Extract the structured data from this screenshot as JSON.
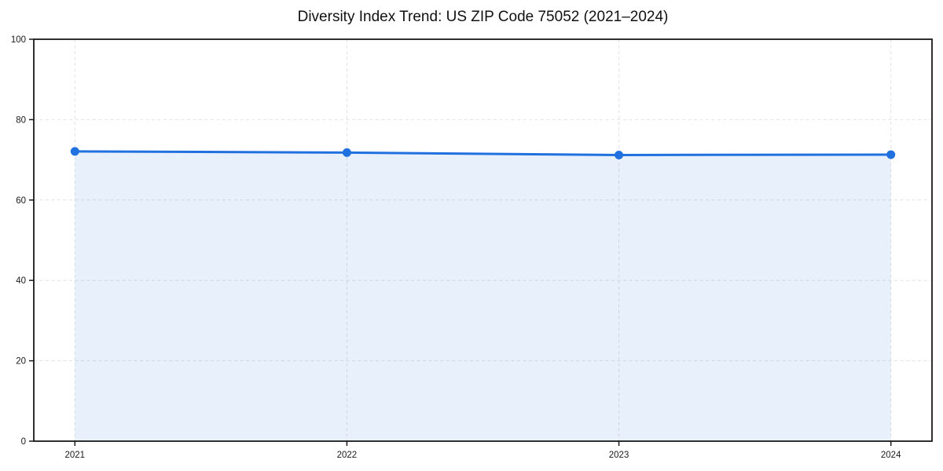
{
  "chart_data": {
    "type": "line",
    "title": "Diversity Index Trend: US ZIP Code 75052 (2021–2024)",
    "x": [
      "2021",
      "2022",
      "2023",
      "2024"
    ],
    "series": [
      {
        "name": "Diversity Index",
        "values": [
          72.1,
          71.8,
          71.2,
          71.3
        ]
      }
    ],
    "xlabel": "",
    "ylabel": "",
    "ylim": [
      0,
      100
    ],
    "yticks": [
      0,
      20,
      40,
      60,
      80,
      100
    ],
    "grid": true,
    "grid_style": "dashed",
    "legend": "none",
    "area_fill": true,
    "colors": {
      "line": "#2170e0",
      "marker": "#2170e0",
      "fill": "rgba(33,112,224,0.10)",
      "grid": "#e2e2e2",
      "spine": "#1a1a1a",
      "tick_text": "#1a1a1a",
      "title_text": "#111111",
      "background": "#ffffff"
    }
  }
}
